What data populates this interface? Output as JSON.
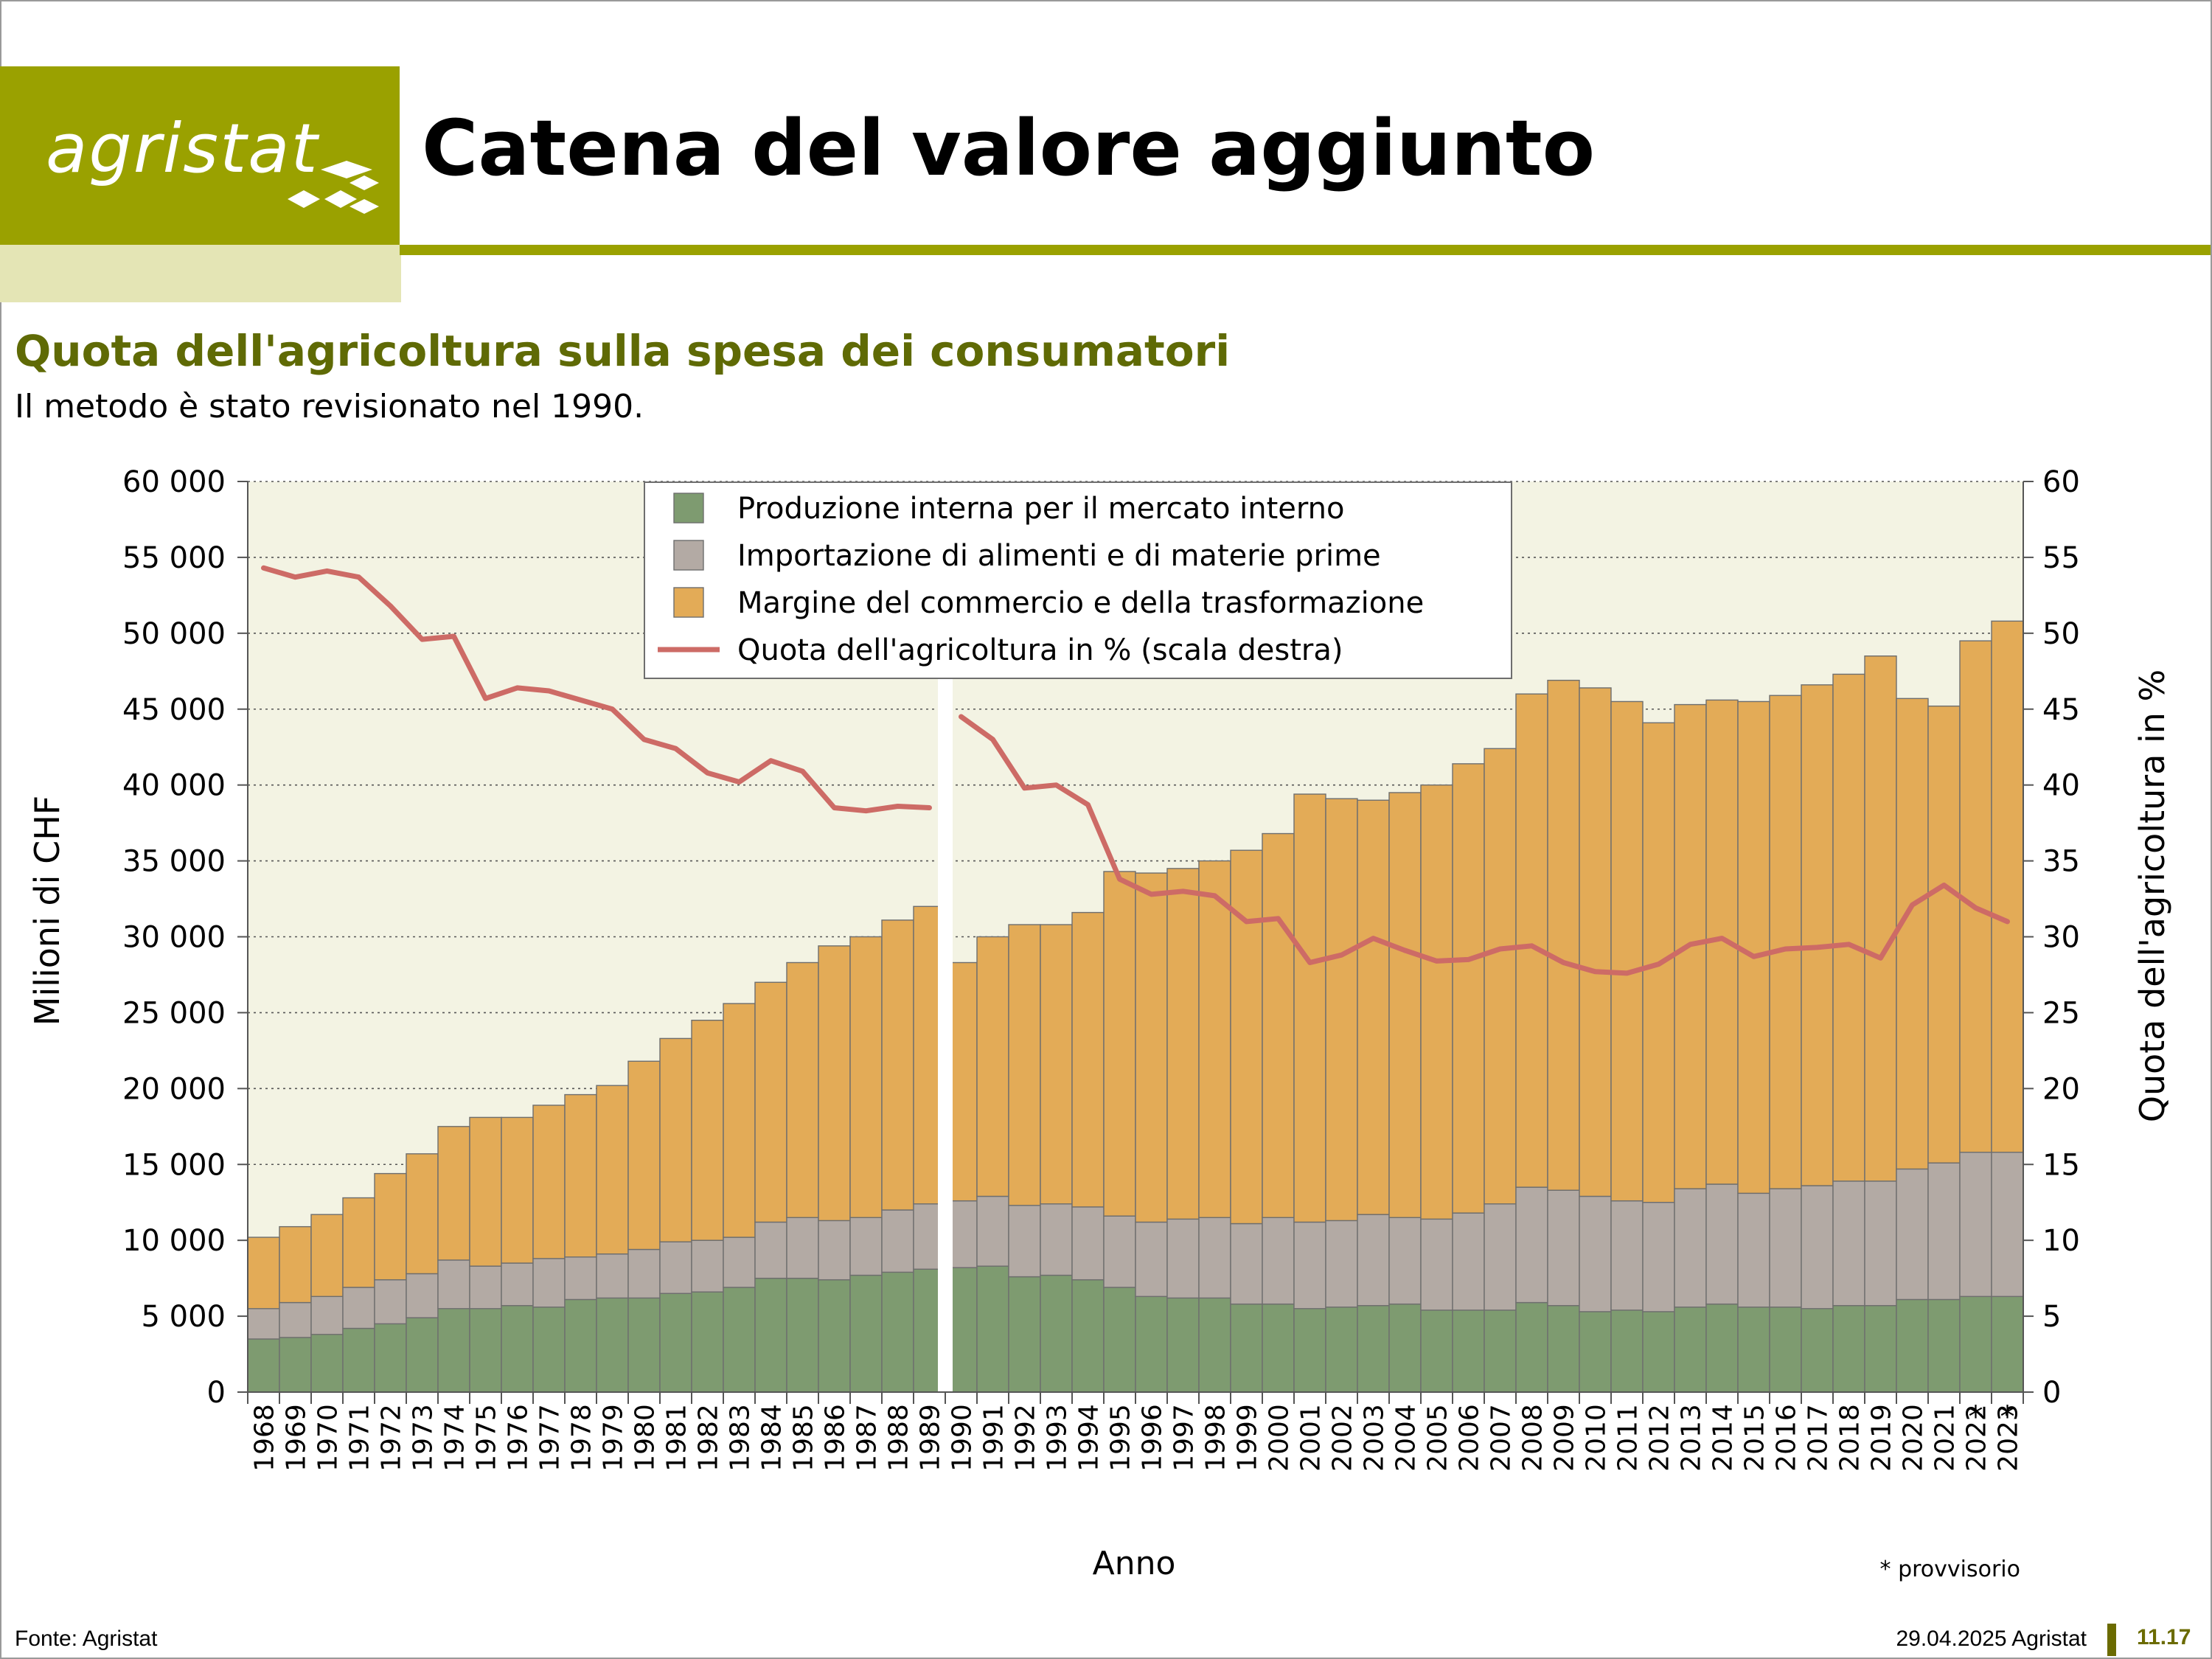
{
  "header": {
    "logo_text": "agristat",
    "title": "Catena del valore aggiunto"
  },
  "subtitle": "Quota dell'agricoltura sulla spesa dei consumatori",
  "note": "Il metodo è stato revisionato nel 1990.",
  "footer": {
    "source": "Fonte: Agristat",
    "date": "29.04.2025 Agristat",
    "page": "11.17"
  },
  "colors": {
    "brand": "#9aa100",
    "brand_light": "#e4e5b5",
    "subtitle": "#5f6a05",
    "plot_bg": "#f3f3e3",
    "production": "#7e9b70",
    "imports": "#b3aaa4",
    "margin": "#e3ab57",
    "share_line": "#cd6b66"
  },
  "chart_data": {
    "type": "bar",
    "stacked": true,
    "xlabel": "Anno",
    "ylabel": "Milioni di CHF",
    "ylabel_right": "Quota dell'agricoltura in %",
    "ylim": [
      0,
      60000
    ],
    "ylim_right": [
      0,
      60
    ],
    "yticks": [
      "0",
      "5 000",
      "10 000",
      "15 000",
      "20 000",
      "25 000",
      "30 000",
      "35 000",
      "40 000",
      "45 000",
      "50 000",
      "55 000",
      "60 000"
    ],
    "yticks_right": [
      "0",
      "5",
      "10",
      "15",
      "20",
      "25",
      "30",
      "35",
      "40",
      "45",
      "50",
      "55",
      "60"
    ],
    "grid": "horizontal dotted",
    "legend_position": "top-center",
    "break_after": "1989",
    "footnote": "* provvisorio",
    "provisional_marker": "*",
    "provisional_years": [
      "2022",
      "2023"
    ],
    "categories": [
      "1968",
      "1969",
      "1970",
      "1971",
      "1972",
      "1973",
      "1974",
      "1975",
      "1976",
      "1977",
      "1978",
      "1979",
      "1980",
      "1981",
      "1982",
      "1983",
      "1984",
      "1985",
      "1986",
      "1987",
      "1988",
      "1989",
      "1990",
      "1991",
      "1992",
      "1993",
      "1994",
      "1995",
      "1996",
      "1997",
      "1998",
      "1999",
      "2000",
      "2001",
      "2002",
      "2003",
      "2004",
      "2005",
      "2006",
      "2007",
      "2008",
      "2009",
      "2010",
      "2011",
      "2012",
      "2013",
      "2014",
      "2015",
      "2016",
      "2017",
      "2018",
      "2019",
      "2020",
      "2021",
      "2022",
      "2023"
    ],
    "series": [
      {
        "name": "Produzione interna per il mercato interno",
        "kind": "bar",
        "values": [
          3500,
          3600,
          3800,
          4200,
          4500,
          4900,
          5500,
          5500,
          5700,
          5600,
          6100,
          6200,
          6200,
          6500,
          6600,
          6900,
          7500,
          7500,
          7400,
          7700,
          7900,
          8100,
          8200,
          8300,
          7600,
          7700,
          7400,
          6900,
          6300,
          6200,
          6200,
          5800,
          5800,
          5500,
          5600,
          5700,
          5800,
          5400,
          5400,
          5400,
          5900,
          5700,
          5300,
          5400,
          5300,
          5600,
          5800,
          5600,
          5600,
          5500,
          5700,
          5700,
          6100,
          6100,
          6300,
          6300
        ]
      },
      {
        "name": "Importazione di alimenti e di materie prime",
        "kind": "bar",
        "values": [
          2000,
          2300,
          2500,
          2700,
          2900,
          2900,
          3200,
          2800,
          2800,
          3200,
          2800,
          2900,
          3200,
          3400,
          3400,
          3300,
          3700,
          4000,
          3900,
          3800,
          4100,
          4300,
          4400,
          4600,
          4700,
          4700,
          4800,
          4700,
          4900,
          5200,
          5300,
          5300,
          5700,
          5700,
          5700,
          6000,
          5700,
          6000,
          6400,
          7000,
          7600,
          7600,
          7600,
          7200,
          7200,
          7800,
          7900,
          7500,
          7800,
          8100,
          8200,
          8200,
          8600,
          9000,
          9500,
          9500
        ]
      },
      {
        "name": "Margine del commercio e della trasformazione",
        "kind": "bar",
        "values": [
          4700,
          5000,
          5400,
          5900,
          7000,
          7900,
          8800,
          9800,
          9600,
          10100,
          10700,
          11100,
          12400,
          13400,
          14500,
          15400,
          15800,
          16800,
          18100,
          18500,
          19100,
          19600,
          15700,
          17100,
          18500,
          18400,
          19400,
          22700,
          23000,
          23100,
          23500,
          24600,
          25300,
          28200,
          27800,
          27300,
          28000,
          28600,
          29600,
          30000,
          32500,
          33600,
          33500,
          32900,
          31600,
          31900,
          31900,
          32400,
          32500,
          33000,
          33400,
          34600,
          31000,
          30100,
          33700,
          35000
        ]
      },
      {
        "name": "Quota dell'agricoltura in % (scala destra)",
        "kind": "line",
        "axis": "right",
        "values": [
          54.3,
          53.7,
          54.1,
          53.7,
          51.8,
          49.6,
          49.8,
          45.7,
          46.4,
          46.2,
          45.6,
          45.0,
          43.0,
          42.4,
          40.8,
          40.2,
          41.6,
          40.9,
          38.5,
          38.3,
          38.6,
          38.5,
          44.5,
          43.0,
          39.8,
          40.0,
          38.7,
          33.8,
          32.8,
          33.0,
          32.7,
          31.0,
          31.2,
          28.3,
          28.8,
          29.9,
          29.1,
          28.4,
          28.5,
          29.2,
          29.4,
          28.3,
          27.7,
          27.6,
          28.2,
          29.5,
          29.9,
          28.7,
          29.2,
          29.3,
          29.5,
          28.6,
          32.1,
          33.4,
          31.9,
          31.0
        ]
      }
    ]
  }
}
